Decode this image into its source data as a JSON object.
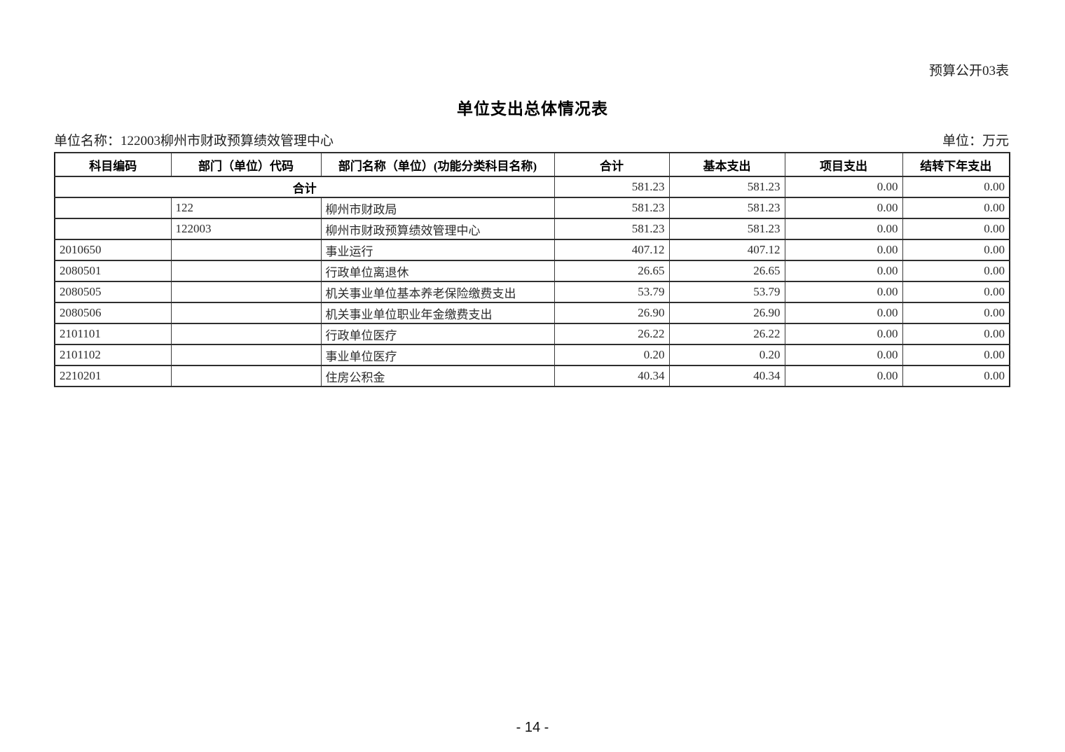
{
  "page": {
    "corner_label": "预算公开03表",
    "title": "单位支出总体情况表",
    "unit_name": "单位名称：122003柳州市财政预算绩效管理中心",
    "unit_of_measure": "单位：万元",
    "page_number": "- 14 -"
  },
  "table": {
    "headers": [
      "科目编码",
      "部门（单位）代码",
      "部门名称（单位）(功能分类科目名称)",
      "合计",
      "基本支出",
      "项目支出",
      "结转下年支出"
    ],
    "rows": [
      {
        "kind": "total",
        "label": "合计",
        "total": "581.23",
        "basic": "581.23",
        "project": "0.00",
        "carryover": "0.00"
      },
      {
        "kind": "data",
        "subject_code": "",
        "dept_code": "122",
        "name": "柳州市财政局",
        "total": "581.23",
        "basic": "581.23",
        "project": "0.00",
        "carryover": "0.00"
      },
      {
        "kind": "data",
        "subject_code": "",
        "dept_code": "122003",
        "name": "柳州市财政预算绩效管理中心",
        "total": "581.23",
        "basic": "581.23",
        "project": "0.00",
        "carryover": "0.00"
      },
      {
        "kind": "data",
        "subject_code": "2010650",
        "dept_code": "",
        "name": "事业运行",
        "total": "407.12",
        "basic": "407.12",
        "project": "0.00",
        "carryover": "0.00"
      },
      {
        "kind": "data",
        "subject_code": "2080501",
        "dept_code": "",
        "name": "行政单位离退休",
        "total": "26.65",
        "basic": "26.65",
        "project": "0.00",
        "carryover": "0.00"
      },
      {
        "kind": "data",
        "subject_code": "2080505",
        "dept_code": "",
        "name": "机关事业单位基本养老保险缴费支出",
        "total": "53.79",
        "basic": "53.79",
        "project": "0.00",
        "carryover": "0.00"
      },
      {
        "kind": "data",
        "subject_code": "2080506",
        "dept_code": "",
        "name": "机关事业单位职业年金缴费支出",
        "total": "26.90",
        "basic": "26.90",
        "project": "0.00",
        "carryover": "0.00"
      },
      {
        "kind": "data",
        "subject_code": "2101101",
        "dept_code": "",
        "name": "行政单位医疗",
        "total": "26.22",
        "basic": "26.22",
        "project": "0.00",
        "carryover": "0.00"
      },
      {
        "kind": "data",
        "subject_code": "2101102",
        "dept_code": "",
        "name": "事业单位医疗",
        "total": "0.20",
        "basic": "0.20",
        "project": "0.00",
        "carryover": "0.00"
      },
      {
        "kind": "data",
        "subject_code": "2210201",
        "dept_code": "",
        "name": "住房公积金",
        "total": "40.34",
        "basic": "40.34",
        "project": "0.00",
        "carryover": "0.00"
      }
    ]
  }
}
